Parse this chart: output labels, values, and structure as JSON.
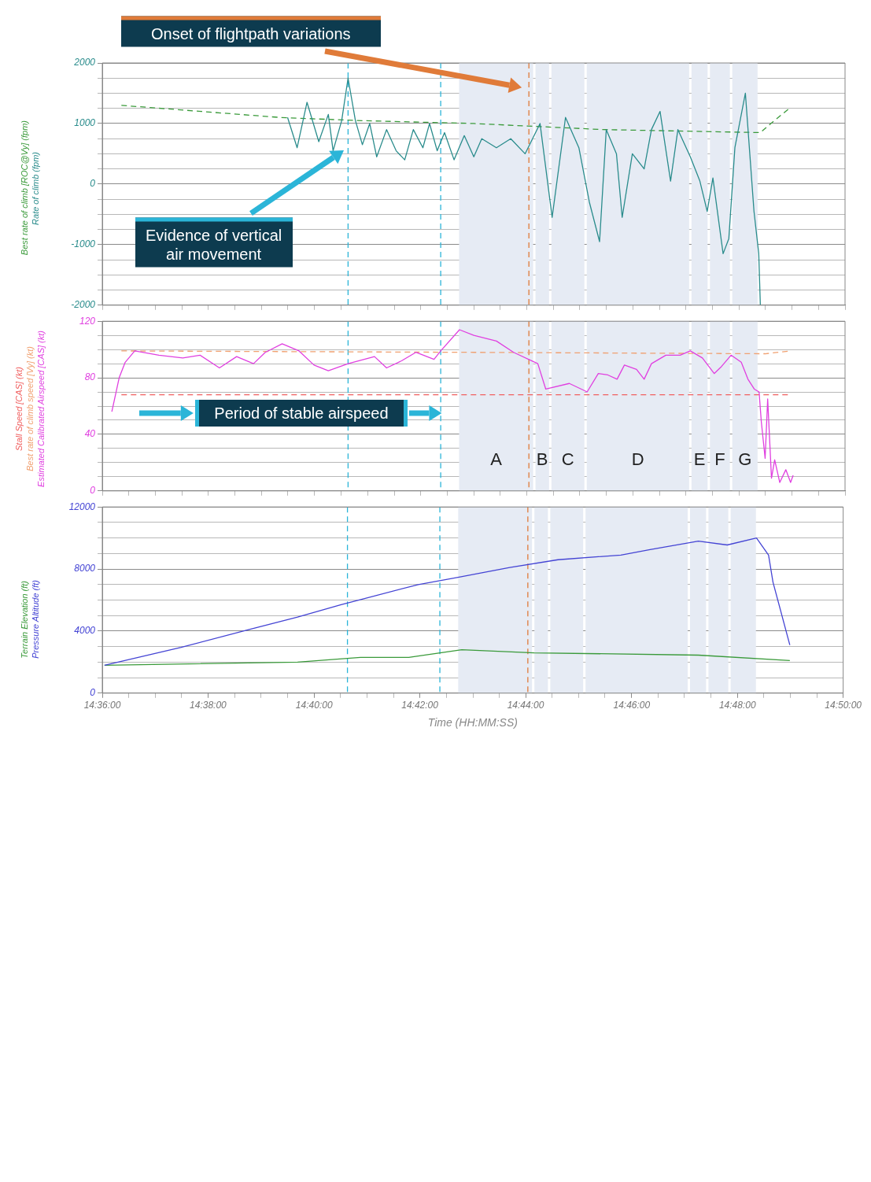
{
  "chart_data": [
    {
      "type": "line",
      "xlim": [
        14.6,
        14.8333
      ],
      "xticks": [
        {
          "value": 14.6,
          "label": null
        },
        {
          "value": 14.6083,
          "label": null
        },
        {
          "value": 14.6167,
          "label": null
        },
        {
          "value": 14.625,
          "label": null
        },
        {
          "value": 14.6333,
          "label": null
        },
        {
          "value": 14.6417,
          "label": null
        },
        {
          "value": 14.65,
          "label": null
        },
        {
          "value": 14.6583,
          "label": null
        },
        {
          "value": 14.6667,
          "label": null
        },
        {
          "value": 14.675,
          "label": null
        },
        {
          "value": 14.6833,
          "label": null
        },
        {
          "value": 14.6917,
          "label": null
        },
        {
          "value": 14.7,
          "label": null
        },
        {
          "value": 14.7083,
          "label": null
        },
        {
          "value": 14.7167,
          "label": null
        },
        {
          "value": 14.725,
          "label": null
        },
        {
          "value": 14.7333,
          "label": null
        },
        {
          "value": 14.7417,
          "label": null
        },
        {
          "value": 14.75,
          "label": null
        },
        {
          "value": 14.7583,
          "label": null
        },
        {
          "value": 14.7667,
          "label": null
        },
        {
          "value": 14.775,
          "label": null
        },
        {
          "value": 14.7833,
          "label": null
        },
        {
          "value": 14.7917,
          "label": null
        },
        {
          "value": 14.8,
          "label": null
        },
        {
          "value": 14.8083,
          "label": null
        },
        {
          "value": 14.8167,
          "label": null
        },
        {
          "value": 14.825,
          "label": null
        },
        {
          "value": 14.8333,
          "label": null
        }
      ],
      "ylim": [
        -2000,
        2000
      ],
      "yticks": [
        -2000,
        {
          "value": -1750,
          "label": null
        },
        {
          "value": -1500,
          "label": null
        },
        {
          "value": -1250,
          "label": null
        },
        -1000,
        {
          "value": -750,
          "label": null
        },
        {
          "value": -500,
          "label": null
        },
        {
          "value": -250,
          "label": null
        },
        0,
        {
          "value": 250,
          "label": null
        },
        {
          "value": 500,
          "label": null
        },
        {
          "value": 750,
          "label": null
        },
        1000,
        {
          "value": 1250,
          "label": null
        },
        {
          "value": 1500,
          "label": null
        },
        {
          "value": 1750,
          "label": null
        },
        2000
      ],
      "grid": "y",
      "tick_labels": "y",
      "series": [
        {
          "name": "Rate of climb (fpm)",
          "color": "#2a8c8c",
          "x": [
            14.6582,
            14.6612,
            14.6643,
            14.668,
            14.671,
            14.6725,
            14.6752,
            14.6772,
            14.6795,
            14.6817,
            14.684,
            14.6862,
            14.6893,
            14.6923,
            14.695,
            14.6977,
            14.7007,
            14.7028,
            14.7052,
            14.7075,
            14.7105,
            14.7137,
            14.7167,
            14.7192,
            14.7238,
            14.7283,
            14.7328,
            14.7375,
            14.7413,
            14.7455,
            14.7497,
            14.753,
            14.7562,
            14.7583,
            14.7615,
            14.7633,
            14.7665,
            14.7702,
            14.7725,
            14.7752,
            14.7785,
            14.7808,
            14.7847,
            14.7877,
            14.79,
            14.7918,
            14.795,
            14.7968,
            14.7987,
            14.802,
            14.8047,
            14.8062,
            14.8067
          ],
          "values": [
            1100,
            600,
            1350,
            700,
            1150,
            550,
            1050,
            1750,
            1050,
            650,
            1000,
            450,
            900,
            550,
            400,
            900,
            600,
            1000,
            550,
            850,
            400,
            800,
            450,
            750,
            600,
            750,
            500,
            1000,
            -550,
            1100,
            600,
            -300,
            -950,
            900,
            500,
            -550,
            500,
            250,
            900,
            1200,
            50,
            900,
            450,
            50,
            -450,
            100,
            -1150,
            -900,
            600,
            1500,
            -450,
            -1150,
            -2000
          ]
        },
        {
          "name": "Best rate of climb [ROC@Vy] (fpm)",
          "color": "#3a9a3a",
          "line_style": "dashed",
          "x": [
            14.606,
            14.6558,
            14.6797,
            14.7167,
            14.7573,
            14.8067,
            14.81,
            14.8158
          ],
          "values": [
            1300,
            1100,
            1050,
            1000,
            900,
            850,
            1000,
            1250
          ]
        }
      ],
      "bands": [
        {
          "axis": "x",
          "from": 14.7117,
          "to": 14.7357,
          "color": "#e6ebf4"
        },
        {
          "axis": "x",
          "from": 14.7357,
          "to": 14.7407,
          "color": "#e6ebf4"
        },
        {
          "axis": "x",
          "from": 14.7407,
          "to": 14.7518,
          "color": "#e6ebf4"
        },
        {
          "axis": "x",
          "from": 14.7518,
          "to": 14.7847,
          "color": "#e6ebf4"
        },
        {
          "axis": "x",
          "from": 14.7847,
          "to": 14.7905,
          "color": "#e6ebf4"
        },
        {
          "axis": "x",
          "from": 14.7905,
          "to": 14.7975,
          "color": "#e6ebf4"
        },
        {
          "axis": "x",
          "from": 14.7975,
          "to": 14.8062,
          "color": "#e6ebf4"
        }
      ],
      "ref_lines": [
        {
          "axis": "x",
          "value": 14.6772,
          "color": "#2bb5d8",
          "line_style": "dashed"
        },
        {
          "axis": "x",
          "value": 14.7063,
          "color": "#2bb5d8",
          "line_style": "dashed"
        },
        {
          "axis": "x",
          "value": 14.734,
          "color": "#e07b39",
          "line_style": "dashed"
        }
      ],
      "annotations": [
        "Onset of flightpath variations",
        "Evidence of vertical air movement"
      ]
    },
    {
      "type": "line",
      "xlim": [
        14.6,
        14.8333
      ],
      "xticks": [
        {
          "value": 14.6,
          "label": null
        },
        {
          "value": 14.6083,
          "label": null
        },
        {
          "value": 14.6167,
          "label": null
        },
        {
          "value": 14.625,
          "label": null
        },
        {
          "value": 14.6333,
          "label": null
        },
        {
          "value": 14.6417,
          "label": null
        },
        {
          "value": 14.65,
          "label": null
        },
        {
          "value": 14.6583,
          "label": null
        },
        {
          "value": 14.6667,
          "label": null
        },
        {
          "value": 14.675,
          "label": null
        },
        {
          "value": 14.6833,
          "label": null
        },
        {
          "value": 14.6917,
          "label": null
        },
        {
          "value": 14.7,
          "label": null
        },
        {
          "value": 14.7083,
          "label": null
        },
        {
          "value": 14.7167,
          "label": null
        },
        {
          "value": 14.725,
          "label": null
        },
        {
          "value": 14.7333,
          "label": null
        },
        {
          "value": 14.7417,
          "label": null
        },
        {
          "value": 14.75,
          "label": null
        },
        {
          "value": 14.7583,
          "label": null
        },
        {
          "value": 14.7667,
          "label": null
        },
        {
          "value": 14.775,
          "label": null
        },
        {
          "value": 14.7833,
          "label": null
        },
        {
          "value": 14.7917,
          "label": null
        },
        {
          "value": 14.8,
          "label": null
        },
        {
          "value": 14.8083,
          "label": null
        },
        {
          "value": 14.8167,
          "label": null
        },
        {
          "value": 14.825,
          "label": null
        },
        {
          "value": 14.8333,
          "label": null
        }
      ],
      "ylim": [
        0,
        120
      ],
      "yticks": [
        0,
        {
          "value": 10,
          "label": null
        },
        {
          "value": 20,
          "label": null
        },
        {
          "value": 30,
          "label": null
        },
        40,
        {
          "value": 50,
          "label": null
        },
        {
          "value": 60,
          "label": null
        },
        {
          "value": 70,
          "label": null
        },
        80,
        {
          "value": 90,
          "label": null
        },
        {
          "value": 100,
          "label": null
        },
        {
          "value": 110,
          "label": null
        },
        120
      ],
      "grid": "y",
      "tick_labels": "y",
      "series": [
        {
          "name": "Estimated Calibrated Airspeed [CAS] (kt)",
          "color": "#e040e0",
          "x": [
            14.603,
            14.6053,
            14.6072,
            14.6102,
            14.6178,
            14.6253,
            14.6307,
            14.6368,
            14.6422,
            14.6475,
            14.6512,
            14.6565,
            14.6618,
            14.6665,
            14.671,
            14.6772,
            14.6855,
            14.6893,
            14.694,
            14.6985,
            14.7042,
            14.7063,
            14.7122,
            14.7167,
            14.7238,
            14.7292,
            14.7368,
            14.7393,
            14.7467,
            14.7523,
            14.7558,
            14.7588,
            14.7617,
            14.764,
            14.7678,
            14.7702,
            14.7725,
            14.777,
            14.7815,
            14.7847,
            14.7885,
            14.7922,
            14.7945,
            14.7975,
            14.8007,
            14.8028,
            14.8048,
            14.8063,
            14.807,
            14.8082,
            14.809,
            14.8102,
            14.8112,
            14.8128,
            14.8147,
            14.8162,
            14.817
          ],
          "values": [
            56,
            80,
            91,
            99,
            96,
            94,
            96,
            87,
            95,
            90,
            98,
            104,
            99,
            89,
            85,
            90,
            95,
            87,
            92,
            98,
            93,
            99,
            114,
            110,
            106,
            98,
            90,
            72,
            76,
            70,
            83,
            82,
            79,
            89,
            86,
            79,
            90,
            96,
            96,
            99,
            94,
            83,
            88,
            96,
            91,
            79,
            72,
            70,
            49,
            23,
            65,
            9,
            22,
            6,
            15,
            6,
            11
          ]
        },
        {
          "name": "Best rate of climb speed [Vy] (kt)",
          "color": "#f0a070",
          "line_style": "dashed",
          "x": [
            14.606,
            14.7167,
            14.8082,
            14.8162
          ],
          "values": [
            99,
            98,
            97,
            99
          ]
        },
        {
          "name": "Stall Speed [CAS] (kt)",
          "color": "#f06060",
          "line_style": "dashed",
          "x": [
            14.606,
            14.8162
          ],
          "values": [
            68,
            68
          ]
        }
      ],
      "bands": [
        {
          "axis": "x",
          "from": 14.7117,
          "to": 14.7357,
          "color": "#e6ebf4",
          "label": "A"
        },
        {
          "axis": "x",
          "from": 14.7357,
          "to": 14.7407,
          "color": "#e6ebf4",
          "label": "B"
        },
        {
          "axis": "x",
          "from": 14.7407,
          "to": 14.7518,
          "color": "#e6ebf4",
          "label": "C"
        },
        {
          "axis": "x",
          "from": 14.7518,
          "to": 14.7847,
          "color": "#e6ebf4",
          "label": "D"
        },
        {
          "axis": "x",
          "from": 14.7847,
          "to": 14.7905,
          "color": "#e6ebf4",
          "label": "E"
        },
        {
          "axis": "x",
          "from": 14.7905,
          "to": 14.7975,
          "color": "#e6ebf4",
          "label": "F"
        },
        {
          "axis": "x",
          "from": 14.7975,
          "to": 14.8062,
          "color": "#e6ebf4",
          "label": "G"
        }
      ],
      "ref_lines": [
        {
          "axis": "x",
          "value": 14.6772,
          "color": "#2bb5d8",
          "line_style": "dashed"
        },
        {
          "axis": "x",
          "value": 14.7063,
          "color": "#2bb5d8",
          "line_style": "dashed"
        },
        {
          "axis": "x",
          "value": 14.734,
          "color": "#e07b39",
          "line_style": "dashed"
        }
      ],
      "annotations": [
        "Period of stable airspeed"
      ]
    },
    {
      "type": "line",
      "xlabel": "Time (HH:MM:SS)",
      "xlim": [
        14.6,
        14.8333
      ],
      "xticks": [
        {
          "value": 14.6,
          "label": "14:36:00"
        },
        {
          "value": 14.6083,
          "label": null
        },
        {
          "value": 14.6167,
          "label": null
        },
        {
          "value": 14.625,
          "label": null
        },
        {
          "value": 14.6333,
          "label": "14:38:00"
        },
        {
          "value": 14.6417,
          "label": null
        },
        {
          "value": 14.65,
          "label": null
        },
        {
          "value": 14.6583,
          "label": null
        },
        {
          "value": 14.6667,
          "label": "14:40:00"
        },
        {
          "value": 14.675,
          "label": null
        },
        {
          "value": 14.6833,
          "label": null
        },
        {
          "value": 14.6917,
          "label": null
        },
        {
          "value": 14.7,
          "label": "14:42:00"
        },
        {
          "value": 14.7083,
          "label": null
        },
        {
          "value": 14.7167,
          "label": null
        },
        {
          "value": 14.725,
          "label": null
        },
        {
          "value": 14.7333,
          "label": "14:44:00"
        },
        {
          "value": 14.7417,
          "label": null
        },
        {
          "value": 14.75,
          "label": null
        },
        {
          "value": 14.7583,
          "label": null
        },
        {
          "value": 14.7667,
          "label": "14:46:00"
        },
        {
          "value": 14.775,
          "label": null
        },
        {
          "value": 14.7833,
          "label": null
        },
        {
          "value": 14.7917,
          "label": null
        },
        {
          "value": 14.8,
          "label": "14:48:00"
        },
        {
          "value": 14.8083,
          "label": null
        },
        {
          "value": 14.8167,
          "label": null
        },
        {
          "value": 14.825,
          "label": null
        },
        {
          "value": 14.8333,
          "label": "14:50:00"
        }
      ],
      "ylim": [
        0,
        12000
      ],
      "yticks": [
        0,
        {
          "value": 1000,
          "label": null
        },
        {
          "value": 2000,
          "label": null
        },
        {
          "value": 3000,
          "label": null
        },
        4000,
        {
          "value": 5000,
          "label": null
        },
        {
          "value": 6000,
          "label": null
        },
        {
          "value": 7000,
          "label": null
        },
        8000,
        {
          "value": 9000,
          "label": null
        },
        {
          "value": 10000,
          "label": null
        },
        {
          "value": 11000,
          "label": null
        },
        12000
      ],
      "grid": "y",
      "series": [
        {
          "name": "Pressure Altitude (ft)",
          "color": "#4444d4",
          "x": [
            14.6007,
            14.6248,
            14.6463,
            14.6615,
            14.6752,
            14.6995,
            14.7117,
            14.7283,
            14.7435,
            14.7633,
            14.7725,
            14.7877,
            14.7968,
            14.806,
            14.8098,
            14.8112,
            14.8165
          ],
          "values": [
            1800,
            2950,
            4100,
            4900,
            5700,
            7000,
            7450,
            8100,
            8600,
            8900,
            9250,
            9800,
            9550,
            10000,
            8900,
            7150,
            3100
          ]
        },
        {
          "name": "Terrain Elevation (ft)",
          "color": "#3a9a3a",
          "x": [
            14.6007,
            14.6615,
            14.6813,
            14.6965,
            14.7132,
            14.736,
            14.7877,
            14.8165
          ],
          "values": [
            1800,
            2000,
            2300,
            2300,
            2800,
            2600,
            2450,
            2100
          ]
        }
      ],
      "bands": [
        {
          "axis": "x",
          "from": 14.7117,
          "to": 14.7357,
          "color": "#e6ebf4"
        },
        {
          "axis": "x",
          "from": 14.7357,
          "to": 14.7407,
          "color": "#e6ebf4"
        },
        {
          "axis": "x",
          "from": 14.7407,
          "to": 14.7518,
          "color": "#e6ebf4"
        },
        {
          "axis": "x",
          "from": 14.7518,
          "to": 14.7847,
          "color": "#e6ebf4"
        },
        {
          "axis": "x",
          "from": 14.7847,
          "to": 14.7905,
          "color": "#e6ebf4"
        },
        {
          "axis": "x",
          "from": 14.7905,
          "to": 14.7975,
          "color": "#e6ebf4"
        },
        {
          "axis": "x",
          "from": 14.7975,
          "to": 14.8062,
          "color": "#e6ebf4"
        }
      ],
      "ref_lines": [
        {
          "axis": "x",
          "value": 14.6772,
          "color": "#2bb5d8",
          "line_style": "dashed"
        },
        {
          "axis": "x",
          "value": 14.7063,
          "color": "#2bb5d8",
          "line_style": "dashed"
        },
        {
          "axis": "x",
          "value": 14.734,
          "color": "#e07b39",
          "line_style": "dashed"
        }
      ]
    }
  ]
}
